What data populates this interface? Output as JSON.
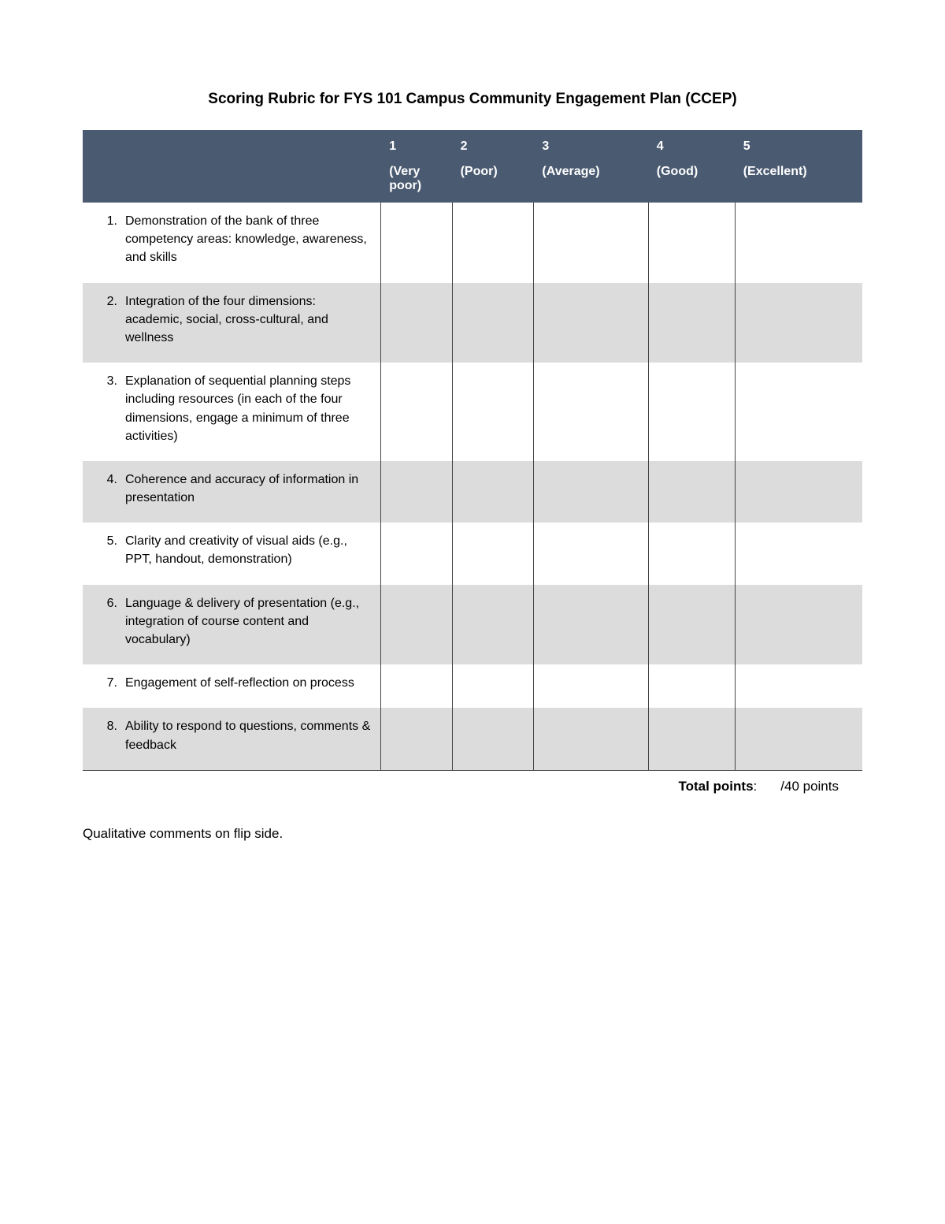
{
  "title": "Scoring Rubric for FYS 101 Campus Community Engagement Plan (CCEP)",
  "table": {
    "header_bg": "#4a5a70",
    "header_fg": "#ffffff",
    "border_color": "#444444",
    "alt_row_bg": "#dcdcdc",
    "row_bg": "#ffffff",
    "columns": [
      {
        "num": "1",
        "label": "(Very poor)"
      },
      {
        "num": "2",
        "label": "(Poor)"
      },
      {
        "num": "3",
        "label": "(Average)"
      },
      {
        "num": "4",
        "label": "(Good)"
      },
      {
        "num": "5",
        "label": "(Excellent)"
      }
    ],
    "rows": [
      {
        "num": "1.",
        "text": "Demonstration of the bank of three competency areas: knowledge, awareness, and skills"
      },
      {
        "num": "2.",
        "text": "Integration of the four dimensions: academic, social, cross-cultural, and wellness"
      },
      {
        "num": "3.",
        "text": "Explanation of sequential planning steps including resources (in each of the four dimensions, engage a minimum of three activities)"
      },
      {
        "num": "4.",
        "text": "Coherence and accuracy of information in presentation"
      },
      {
        "num": "5.",
        "text": "Clarity and creativity of visual aids (e.g., PPT, handout, demonstration)"
      },
      {
        "num": "6.",
        "text": "Language & delivery of presentation (e.g., integration of course content and vocabulary)"
      },
      {
        "num": "7.",
        "text": "Engagement of self-reflection on process"
      },
      {
        "num": "8.",
        "text": "Ability to respond to questions, comments & feedback"
      }
    ]
  },
  "total": {
    "label": "Total points",
    "value": "/40 points"
  },
  "footnote": "Qualitative comments on flip side."
}
